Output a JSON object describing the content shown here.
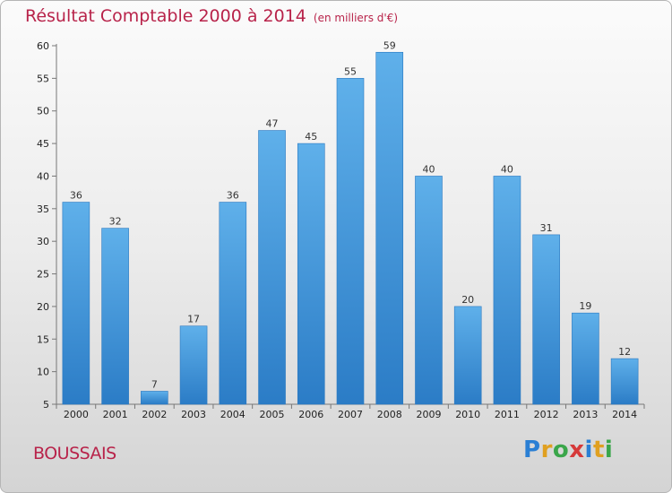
{
  "chart_data": {
    "type": "bar",
    "title": "Résultat Comptable 2000 à 2014",
    "subtitle": "(en milliers d'€)",
    "categories": [
      "2000",
      "2001",
      "2002",
      "2003",
      "2004",
      "2005",
      "2006",
      "2007",
      "2008",
      "2009",
      "2010",
      "2011",
      "2012",
      "2013",
      "2014"
    ],
    "values": [
      36,
      32,
      7,
      17,
      36,
      47,
      45,
      55,
      59,
      40,
      20,
      40,
      31,
      19,
      12
    ],
    "ylim": [
      5,
      60
    ],
    "yticks": [
      5,
      10,
      15,
      20,
      25,
      30,
      35,
      40,
      45,
      50,
      55,
      60
    ],
    "grid": false,
    "bar_color": "#3c93d8"
  },
  "commune": "BOUSSAIS",
  "logo": {
    "letters": [
      "P",
      "r",
      "o",
      "x",
      "i",
      "t",
      "i"
    ],
    "colors": [
      "#2a7fd4",
      "#e0a020",
      "#3aa64a",
      "#d63a3a",
      "#2a7fd4",
      "#e0a020",
      "#3aa64a"
    ]
  }
}
